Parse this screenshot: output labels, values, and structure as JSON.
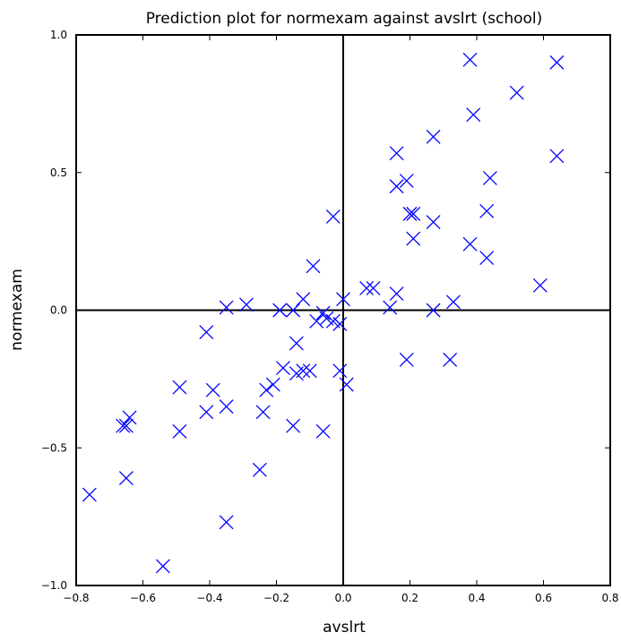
{
  "chart_data": {
    "type": "scatter",
    "title": "Prediction plot for normexam against avslrt (school)",
    "xlabel": "avslrt",
    "ylabel": "normexam",
    "xlim": [
      -0.8,
      0.8
    ],
    "ylim": [
      -1.0,
      1.0
    ],
    "xticks": [
      -0.8,
      -0.6,
      -0.4,
      -0.2,
      0.0,
      0.2,
      0.4,
      0.6,
      0.8
    ],
    "yticks": [
      -1.0,
      -0.5,
      0.0,
      0.5,
      1.0
    ],
    "xtick_labels": [
      "−0.8",
      "−0.6",
      "−0.4",
      "−0.2",
      "0.0",
      "0.2",
      "0.4",
      "0.6",
      "0.8"
    ],
    "ytick_labels": [
      "−1.0",
      "−0.5",
      "0.0",
      "0.5",
      "1.0"
    ],
    "grid": false,
    "reference_lines": {
      "x": 0.0,
      "y": 0.0
    },
    "marker": "x",
    "color": "#0000ff",
    "points": [
      [
        -0.76,
        -0.67
      ],
      [
        -0.66,
        -0.42
      ],
      [
        -0.65,
        -0.42
      ],
      [
        -0.64,
        -0.39
      ],
      [
        -0.65,
        -0.61
      ],
      [
        -0.54,
        -0.93
      ],
      [
        -0.49,
        -0.28
      ],
      [
        -0.49,
        -0.44
      ],
      [
        -0.41,
        -0.08
      ],
      [
        -0.41,
        -0.37
      ],
      [
        -0.39,
        -0.29
      ],
      [
        -0.35,
        -0.35
      ],
      [
        -0.35,
        0.01
      ],
      [
        -0.35,
        -0.77
      ],
      [
        -0.29,
        0.02
      ],
      [
        -0.25,
        -0.58
      ],
      [
        -0.24,
        -0.37
      ],
      [
        -0.23,
        -0.29
      ],
      [
        -0.21,
        -0.27
      ],
      [
        -0.19,
        0.0
      ],
      [
        -0.18,
        -0.21
      ],
      [
        -0.15,
        0.0
      ],
      [
        -0.15,
        -0.42
      ],
      [
        -0.14,
        -0.12
      ],
      [
        -0.14,
        -0.23
      ],
      [
        -0.12,
        -0.22
      ],
      [
        -0.12,
        0.04
      ],
      [
        -0.1,
        -0.22
      ],
      [
        -0.09,
        0.16
      ],
      [
        -0.08,
        -0.04
      ],
      [
        -0.06,
        -0.01
      ],
      [
        -0.06,
        -0.44
      ],
      [
        -0.05,
        -0.03
      ],
      [
        -0.03,
        0.34
      ],
      [
        -0.03,
        -0.04
      ],
      [
        -0.01,
        -0.22
      ],
      [
        -0.01,
        -0.05
      ],
      [
        0.0,
        0.04
      ],
      [
        0.01,
        -0.27
      ],
      [
        0.07,
        0.08
      ],
      [
        0.09,
        0.08
      ],
      [
        0.14,
        0.01
      ],
      [
        0.16,
        0.57
      ],
      [
        0.16,
        0.45
      ],
      [
        0.16,
        0.06
      ],
      [
        0.19,
        -0.18
      ],
      [
        0.19,
        0.47
      ],
      [
        0.2,
        0.35
      ],
      [
        0.21,
        0.35
      ],
      [
        0.21,
        0.26
      ],
      [
        0.27,
        0.63
      ],
      [
        0.27,
        0.32
      ],
      [
        0.27,
        0.0
      ],
      [
        0.32,
        -0.18
      ],
      [
        0.33,
        0.03
      ],
      [
        0.38,
        0.91
      ],
      [
        0.38,
        0.24
      ],
      [
        0.39,
        0.71
      ],
      [
        0.43,
        0.36
      ],
      [
        0.43,
        0.19
      ],
      [
        0.44,
        0.48
      ],
      [
        0.52,
        0.79
      ],
      [
        0.59,
        0.09
      ],
      [
        0.64,
        0.9
      ],
      [
        0.64,
        0.56
      ]
    ]
  }
}
